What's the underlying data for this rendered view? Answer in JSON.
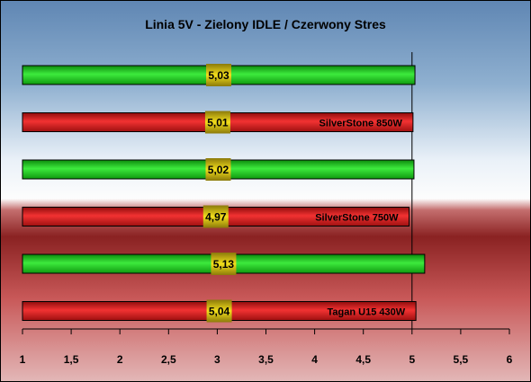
{
  "chart_data": {
    "type": "bar",
    "orientation": "horizontal",
    "title": "Linia 5V - Zielony IDLE / Czerwony Stres",
    "bars": [
      {
        "value": 5.03,
        "value_label": "5,03",
        "state": "idle",
        "label": ""
      },
      {
        "value": 5.01,
        "value_label": "5,01",
        "state": "stress",
        "label": "SilverStone 850W"
      },
      {
        "value": 5.02,
        "value_label": "5,02",
        "state": "idle",
        "label": ""
      },
      {
        "value": 4.97,
        "value_label": "4,97",
        "state": "stress",
        "label": "SilverStone 750W"
      },
      {
        "value": 5.13,
        "value_label": "5,13",
        "state": "idle",
        "label": ""
      },
      {
        "value": 5.04,
        "value_label": "5,04",
        "state": "stress",
        "label": "Tagan U15 430W"
      }
    ],
    "xlim": [
      1,
      6
    ],
    "x_ticks": [
      1,
      1.5,
      2,
      2.5,
      3,
      3.5,
      4,
      4.5,
      5,
      5.5,
      6
    ],
    "x_tick_labels": [
      "1",
      "1,5",
      "2",
      "2,5",
      "3",
      "3,5",
      "4",
      "4,5",
      "5",
      "5,5",
      "6"
    ],
    "reference_line": 5,
    "colors": {
      "idle": "#22cc22",
      "stress": "#dd1a1a",
      "value_label_bg": "#e8d21a"
    }
  }
}
